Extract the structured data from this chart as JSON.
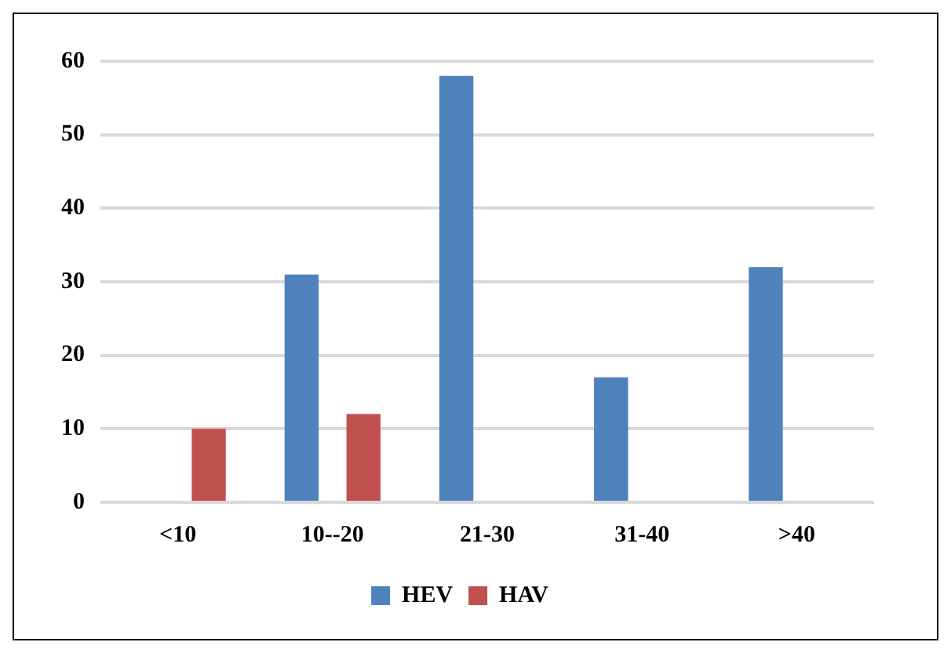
{
  "chart_data": {
    "type": "bar",
    "categories": [
      "<10",
      "10--20",
      "21-30",
      "31-40",
      ">40"
    ],
    "series": [
      {
        "name": "HEV",
        "color": "#4f81bd",
        "values": [
          0,
          31,
          58,
          17,
          32
        ]
      },
      {
        "name": "HAV",
        "color": "#c0504d",
        "values": [
          10,
          12,
          0,
          0,
          0
        ]
      }
    ],
    "ylim": [
      0,
      60
    ],
    "yticks": [
      0,
      10,
      20,
      30,
      40,
      50,
      60
    ],
    "grid": "y",
    "legend": "bottom"
  }
}
